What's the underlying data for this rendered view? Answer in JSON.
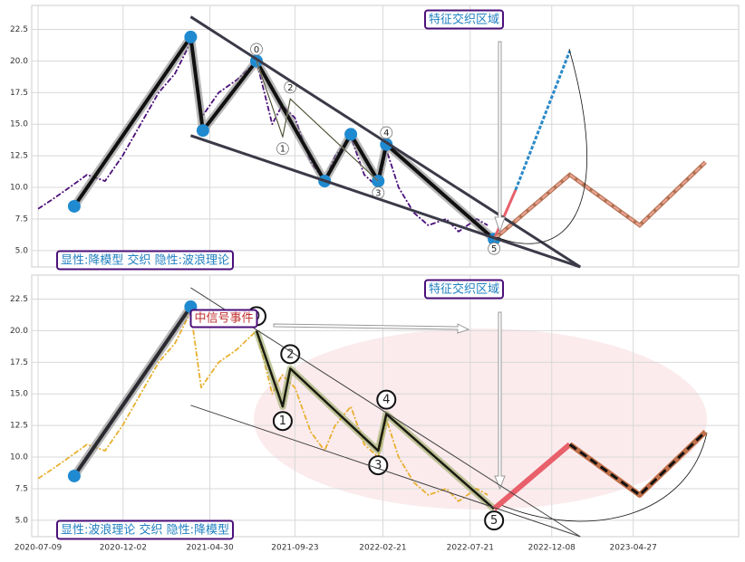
{
  "chart_data": [
    {
      "type": "line",
      "xlim": [
        "2020-06-28",
        "2023-10-25"
      ],
      "ylim": [
        3.7,
        24.4
      ],
      "yticks": [
        {
          "value": 5,
          "label": "5.0"
        },
        {
          "value": 7.5,
          "label": "7.5"
        },
        {
          "value": 10,
          "label": "10.0"
        },
        {
          "value": 12.5,
          "label": "12.5"
        },
        {
          "value": 15,
          "label": "15.0"
        },
        {
          "value": 17.5,
          "label": "17.5"
        },
        {
          "value": 20,
          "label": "20.0"
        },
        {
          "value": 22.5,
          "label": "22.5"
        }
      ],
      "grid": true,
      "annotations": [
        "特征交织区域",
        "显性:降模型 交织 隐性:波浪理论"
      ],
      "series": [
        {
          "color": "#4b0f7a",
          "x": [
            "2020-07-09",
            "2020-08-01",
            "2020-09-01",
            "2020-10-01",
            "2020-11-01",
            "2020-12-01",
            "2021-01-01",
            "2021-02-01",
            "2021-03-01",
            "2021-03-28",
            "2021-04-15",
            "2021-05-15",
            "2021-06-15",
            "2021-07-19",
            "2021-08-15",
            "2021-09-01",
            "2021-09-23",
            "2021-10-20",
            "2021-11-13",
            "2021-12-01",
            "2021-12-28",
            "2022-01-20",
            "2022-02-13",
            "2022-02-27",
            "2022-03-20",
            "2022-04-15",
            "2022-05-10",
            "2022-06-10",
            "2022-07-01",
            "2022-08-01",
            "2022-08-20"
          ],
          "values": [
            8.3,
            9.0,
            10.0,
            11.0,
            10.5,
            12.5,
            15.0,
            17.5,
            19.0,
            21.5,
            15.5,
            17.5,
            18.5,
            20.0,
            15.0,
            16.5,
            15.5,
            12.0,
            10.5,
            12.5,
            14.0,
            11.0,
            10.0,
            13.0,
            10.0,
            8.0,
            7.0,
            7.5,
            6.5,
            7.5,
            7.0
          ]
        },
        {
          "color": "#111111",
          "x": [
            "2020-09-09",
            "2021-03-28",
            "2021-04-18",
            "2021-07-19",
            "2021-11-13",
            "2021-12-28",
            "2022-02-13",
            "2022-02-27",
            "2022-08-31"
          ],
          "values": [
            8.5,
            21.9,
            14.5,
            20.0,
            10.5,
            14.2,
            10.5,
            13.4,
            5.9
          ],
          "point_labels": [
            null,
            null,
            null,
            "0",
            null,
            null,
            "3",
            "4",
            "5"
          ]
        },
        {
          "color": "#8a8a60",
          "x": [
            "2021-07-19",
            "2021-09-02",
            "2021-09-15",
            "2022-02-13"
          ],
          "values": [
            20.0,
            14.0,
            17.0,
            10.5
          ],
          "point_labels": [
            null,
            "1",
            "2",
            null
          ]
        },
        {
          "color": "#e8606a",
          "x": [
            "2022-08-31",
            "2022-10-07"
          ],
          "values": [
            5.9,
            9.8
          ]
        },
        {
          "color": "#2a8ac8",
          "x": [
            "2022-10-07",
            "2023-01-08"
          ],
          "values": [
            9.8,
            20.8
          ]
        },
        {
          "color": "#e8a090",
          "x": [
            "2022-08-31",
            "2023-01-08",
            "2023-05-08",
            "2023-08-29"
          ],
          "values": [
            5.9,
            11.0,
            7.0,
            12.0
          ]
        },
        {
          "color": "#3a3a48",
          "x": [
            "2021-03-28",
            "2023-01-26"
          ],
          "values": [
            23.5,
            3.7
          ]
        },
        {
          "color": "#3a3a48",
          "x": [
            "2021-03-28",
            "2023-01-26"
          ],
          "values": [
            14.1,
            3.7
          ]
        }
      ]
    },
    {
      "type": "line",
      "xlim": [
        "2020-06-28",
        "2023-10-25"
      ],
      "ylim": [
        3.7,
        24.4
      ],
      "xticks": [
        "2020-07-09",
        "2020-12-02",
        "2021-04-30",
        "2021-09-23",
        "2022-02-21",
        "2022-07-21",
        "2022-12-08",
        "2023-04-27"
      ],
      "yticks": [
        {
          "value": 5,
          "label": "5.0"
        },
        {
          "value": 7.5,
          "label": "7.5"
        },
        {
          "value": 10,
          "label": "10.0"
        },
        {
          "value": 12.5,
          "label": "12.5"
        },
        {
          "value": 15,
          "label": "15.0"
        },
        {
          "value": 17.5,
          "label": "17.5"
        },
        {
          "value": 20,
          "label": "20.0"
        },
        {
          "value": 22.5,
          "label": "22.5"
        }
      ],
      "grid": true,
      "annotations": [
        "特征交织区域",
        "显性:波浪理论 交织 隐性:降模型",
        "中信号事件"
      ],
      "series": [
        {
          "color": "#e8b030",
          "x": [
            "2020-07-09",
            "2020-08-01",
            "2020-09-01",
            "2020-10-01",
            "2020-11-01",
            "2020-12-01",
            "2021-01-01",
            "2021-02-01",
            "2021-03-01",
            "2021-03-28",
            "2021-04-15",
            "2021-05-15",
            "2021-06-15",
            "2021-07-19",
            "2021-08-15",
            "2021-09-01",
            "2021-09-23",
            "2021-10-20",
            "2021-11-13",
            "2021-12-01",
            "2021-12-28",
            "2022-01-20",
            "2022-02-13",
            "2022-02-27",
            "2022-03-20",
            "2022-04-15",
            "2022-05-10",
            "2022-06-10",
            "2022-07-01",
            "2022-08-01",
            "2022-08-20"
          ],
          "values": [
            8.3,
            9.0,
            10.0,
            11.0,
            10.5,
            12.5,
            15.0,
            17.5,
            19.0,
            21.5,
            15.5,
            17.5,
            18.5,
            20.0,
            15.0,
            16.5,
            15.5,
            12.0,
            10.5,
            12.5,
            14.0,
            11.0,
            10.0,
            13.0,
            10.0,
            8.0,
            7.0,
            7.5,
            6.5,
            7.5,
            7.0
          ]
        },
        {
          "color": "#2a2a30",
          "x": [
            "2020-09-09",
            "2021-03-28"
          ],
          "values": [
            8.5,
            21.9
          ]
        },
        {
          "color": "#1a1a10",
          "x": [
            "2021-07-19",
            "2021-09-02",
            "2021-09-15",
            "2022-02-13",
            "2022-02-27",
            "2022-08-31"
          ],
          "values": [
            20.0,
            14.0,
            17.0,
            10.5,
            13.4,
            5.9
          ],
          "point_labels": [
            "0",
            "1",
            "2",
            "3",
            "4",
            "5"
          ]
        },
        {
          "color": "#e8606a",
          "x": [
            "2022-08-31",
            "2023-01-08"
          ],
          "values": [
            5.9,
            11.0
          ]
        },
        {
          "color": "#c0704a",
          "x": [
            "2023-01-08",
            "2023-05-08",
            "2023-08-29"
          ],
          "values": [
            11.0,
            7.0,
            12.0
          ]
        },
        {
          "color": "#444444",
          "x": [
            "2021-03-28",
            "2023-01-26"
          ],
          "values": [
            23.4,
            3.7
          ]
        },
        {
          "color": "#444444",
          "x": [
            "2021-03-28",
            "2023-01-26"
          ],
          "values": [
            14.1,
            3.7
          ]
        }
      ]
    }
  ]
}
